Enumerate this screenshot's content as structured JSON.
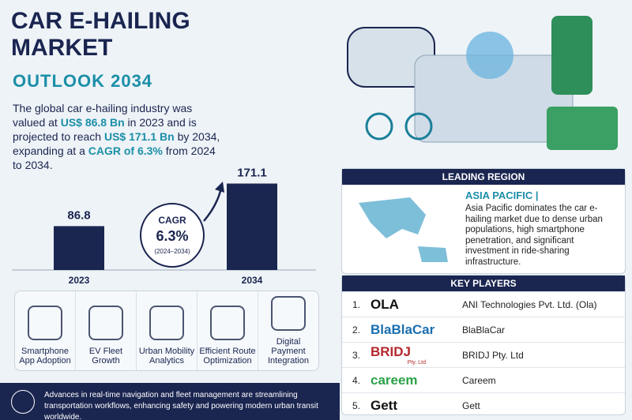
{
  "header": {
    "title_lines": [
      "CAR E-HAILING",
      "MARKET"
    ],
    "subtitle": "OUTLOOK 2034"
  },
  "summary": [
    {
      "text": "The global car e-hailing industry was valued at ",
      "highlight": false
    },
    {
      "text": "US$ 86.8 Bn",
      "highlight": true
    },
    {
      "text": " in 2023 and is projected to reach ",
      "highlight": false
    },
    {
      "text": "US$ 171.1 Bn",
      "highlight": true
    },
    {
      "text": " by 2034, expanding at a ",
      "highlight": false
    },
    {
      "text": "CAGR of 6.3%",
      "highlight": true
    },
    {
      "text": " from 2024 to 2034.",
      "highlight": false
    }
  ],
  "growth_chart": {
    "categories": [
      "2023",
      "2034"
    ],
    "values": [
      86.8,
      171.1
    ],
    "color": "#1a2550"
  },
  "cagr": {
    "label": "CAGR",
    "value": "6.3%",
    "period": "(2024–2034)"
  },
  "drivers": [
    "Smartphone App Adoption",
    "EV Fleet Growth",
    "Urban Mobility Analytics",
    "Efficient Route Optimization",
    "Digital Payment Integration"
  ],
  "leading_region": {
    "heading": "LEADING REGION",
    "region": "ASIA PACIFIC |",
    "description": "Asia Pacific dominates the car e-hailing market due to dense urban populations, high smartphone penetration, and significant investment in ride-sharing infrastructure."
  },
  "key_players": {
    "heading": "KEY PLAYERS",
    "rows": [
      {
        "rank": "1.",
        "logo": "OLA",
        "logo_sub": null,
        "name": "ANI Technologies Pvt. Ltd. (Ola)"
      },
      {
        "rank": "2.",
        "logo": "BlaBlaCar",
        "logo_sub": null,
        "name": "BlaBlaCar"
      },
      {
        "rank": "3.",
        "logo": "BRIDJ",
        "logo_sub": "Pty. Ltd",
        "name": "BRIDJ Pty. Ltd"
      },
      {
        "rank": "4.",
        "logo": "careem",
        "logo_sub": null,
        "name": "Careem"
      },
      {
        "rank": "5.",
        "logo": "Gett",
        "logo_sub": null,
        "name": "Gett"
      }
    ]
  },
  "footer": {
    "text": "Advances in real-time navigation and fleet management are streamlining transportation workflows, enhancing safety and powering modern urban transit worldwide."
  }
}
